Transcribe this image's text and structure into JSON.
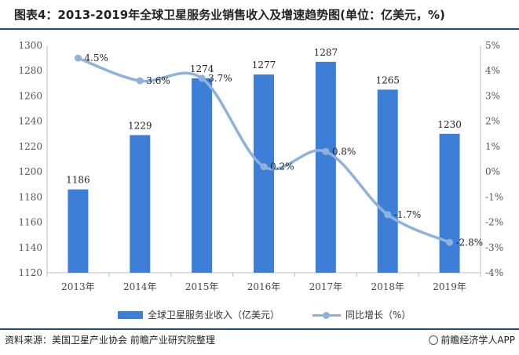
{
  "title": "图表4：2013-2019年全球卫星服务业销售收入及增速趋势图(单位：亿美元，%)",
  "chart_data": {
    "type": "bar",
    "categories": [
      "2013年",
      "2014年",
      "2015年",
      "2016年",
      "2017年",
      "2018年",
      "2019年"
    ],
    "series": [
      {
        "name": "全球卫星服务业收入（亿美元）",
        "type": "bar",
        "axis": "left",
        "values": [
          1186,
          1229,
          1274,
          1277,
          1287,
          1265,
          1230
        ],
        "labels": [
          "1186",
          "1229",
          "1274",
          "1277",
          "1287",
          "1265",
          "1230"
        ]
      },
      {
        "name": "同比增长（%）",
        "type": "line",
        "axis": "right",
        "values": [
          4.5,
          3.6,
          3.7,
          0.2,
          0.8,
          -1.7,
          -2.8
        ],
        "labels": [
          "4.5%",
          "3.6%",
          "3.7%",
          "0.2%",
          "0.8%",
          "-1.7%",
          "-2.8%"
        ]
      }
    ],
    "y_left": {
      "min": 1120,
      "max": 1300,
      "step": 20,
      "ticks": [
        "1120",
        "1140",
        "1160",
        "1180",
        "1200",
        "1220",
        "1240",
        "1260",
        "1280",
        "1300"
      ]
    },
    "y_right": {
      "min": -4,
      "max": 5,
      "step": 1,
      "ticks": [
        "-4%",
        "-3%",
        "-2%",
        "-1%",
        "0%",
        "1%",
        "2%",
        "3%",
        "4%",
        "5%"
      ]
    },
    "grid": false,
    "legend_position": "bottom",
    "colors": {
      "bar": "#3d7fd6",
      "line": "#8fb2dd",
      "axis": "#bfbfbf"
    }
  },
  "legend": {
    "bar_label": "全球卫星服务业收入（亿美元）",
    "line_label": "同比增长（%）"
  },
  "footer": {
    "source": "资料来源：美国卫星产业协会 前瞻产业研究院整理",
    "brand": "前瞻经济学人APP"
  }
}
